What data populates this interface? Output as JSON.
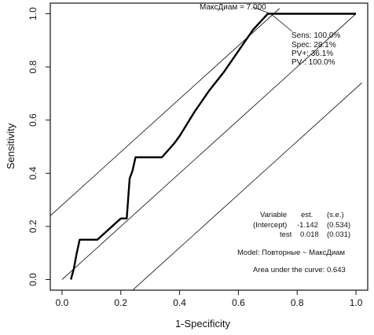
{
  "chart_data": {
    "type": "line",
    "title": "",
    "xlabel": "1-Specificity",
    "ylabel": "Sensitivity",
    "xlim": [
      -0.04,
      1.04
    ],
    "ylim": [
      -0.04,
      1.04
    ],
    "xticks": [
      "0.0",
      "0.2",
      "0.4",
      "0.6",
      "0.8",
      "1.0"
    ],
    "yticks": [
      "0.0",
      "0.2",
      "0.4",
      "0.6",
      "0.8",
      "1.0"
    ],
    "grid": false,
    "series": [
      {
        "role": "roc-curve",
        "x": [
          0.03,
          0.04,
          0.05,
          0.06,
          0.12,
          0.16,
          0.2,
          0.22,
          0.23,
          0.24,
          0.25,
          0.3,
          0.34,
          0.38,
          0.4,
          0.45,
          0.5,
          0.55,
          0.6,
          0.65,
          0.7,
          0.72,
          1.0
        ],
        "y": [
          0.0,
          0.04,
          0.1,
          0.15,
          0.15,
          0.19,
          0.23,
          0.23,
          0.38,
          0.41,
          0.46,
          0.46,
          0.46,
          0.51,
          0.54,
          0.63,
          0.71,
          0.78,
          0.86,
          0.94,
          1.0,
          1.0,
          1.0
        ]
      },
      {
        "role": "diagonal",
        "x": [
          0.0,
          1.0
        ],
        "y": [
          0.0,
          1.0
        ]
      },
      {
        "role": "upper-confidence-line",
        "x": [
          -0.04,
          0.74
        ],
        "y": [
          0.24,
          1.02
        ]
      },
      {
        "role": "lower-confidence-line",
        "x": [
          0.24,
          1.02
        ],
        "y": [
          -0.04,
          0.74
        ]
      }
    ],
    "cutoff_point": {
      "x": 0.71,
      "y": 1.0
    },
    "annotations": {
      "cutoff_label": "МаксДиам = 7.000",
      "sens": "Sens: 100.0%",
      "spec": "Spec: 28.1%",
      "pv_plus": "PV+: 36.1%",
      "pv_minus": "PV-: 100.0%",
      "table_header": [
        "Variable",
        "est.",
        "(s.e.)"
      ],
      "table_rows": [
        [
          "(Intercept)",
          "-1.142",
          "(0.534)"
        ],
        [
          "test",
          "0.018",
          "(0.031)"
        ]
      ],
      "model": "Model: Повторные ~ МаксДиам",
      "auc": "Area under the curve: 0.643"
    },
    "colors": {
      "line": "#000000",
      "background": "#ffffff"
    }
  }
}
